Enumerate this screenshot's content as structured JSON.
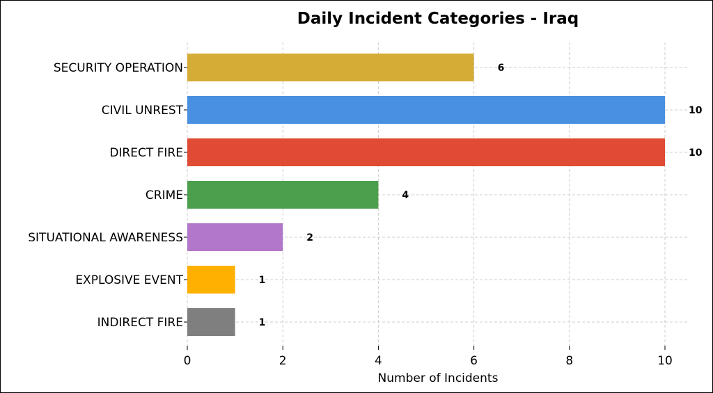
{
  "chart_data": {
    "type": "bar",
    "orientation": "horizontal",
    "title": "Daily Incident Categories - Iraq",
    "xlabel": "Number of Incidents",
    "ylabel": "",
    "xlim": [
      0,
      10.5
    ],
    "xticks": [
      0,
      2,
      4,
      6,
      8,
      10
    ],
    "grid": true,
    "categories": [
      "SECURITY OPERATION",
      "CIVIL UNREST",
      "DIRECT FIRE",
      "CRIME",
      "SITUATIONAL AWARENESS",
      "EXPLOSIVE EVENT",
      "INDIRECT FIRE"
    ],
    "values": [
      6,
      10,
      10,
      4,
      2,
      1,
      1
    ],
    "colors": [
      "#D4AC36",
      "#4A90E2",
      "#E04B35",
      "#4C9F4C",
      "#B377C9",
      "#FFB000",
      "#7F7F7F"
    ]
  }
}
